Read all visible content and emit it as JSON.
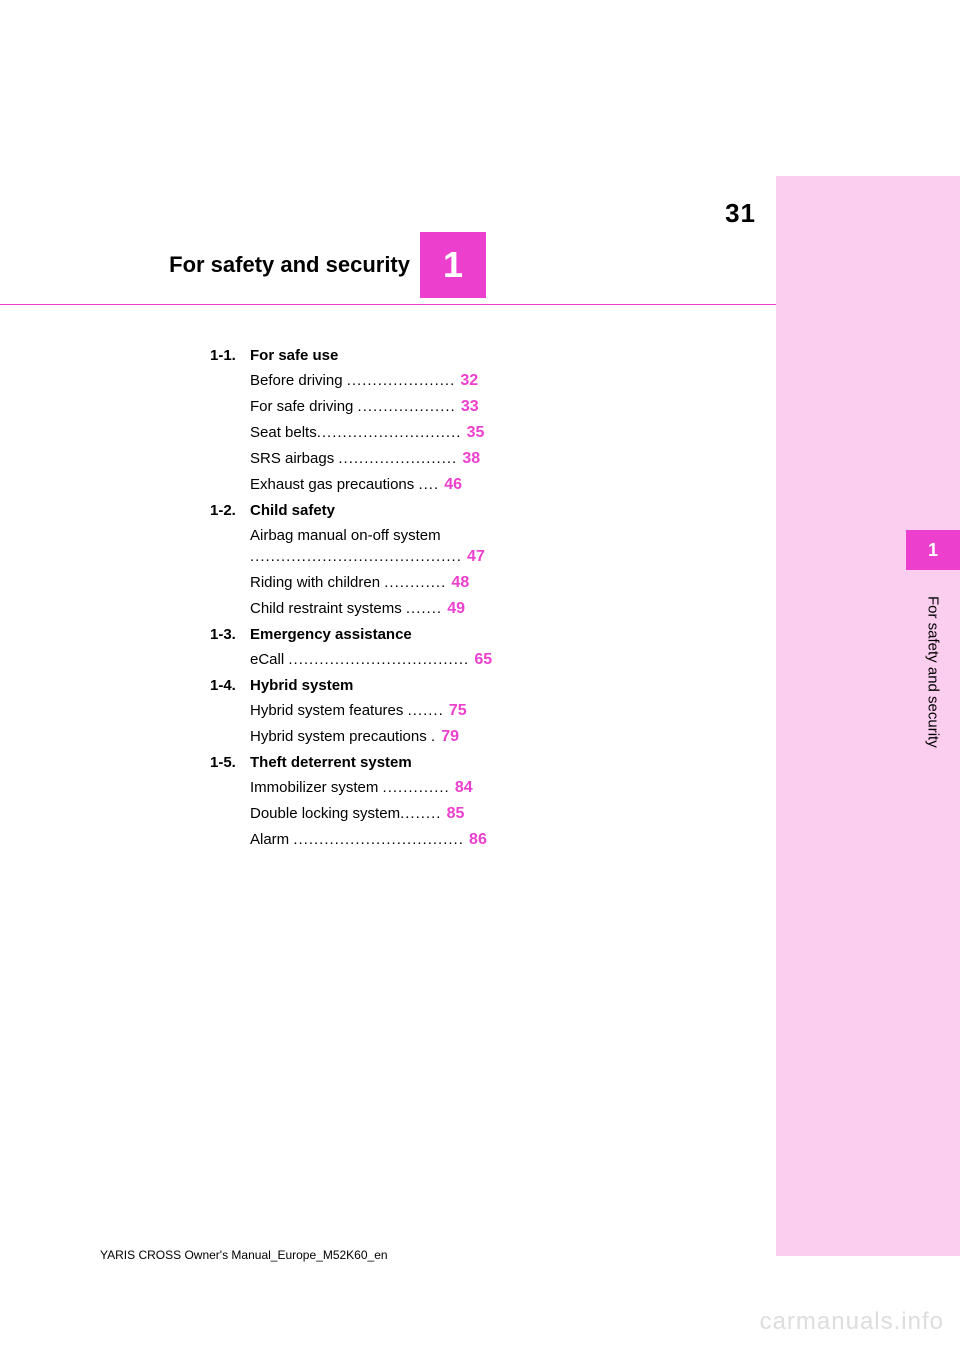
{
  "page": {
    "number": "31",
    "footer": "YARIS CROSS Owner's Manual_Europe_M52K60_en",
    "watermark": "carmanuals.info"
  },
  "chapter": {
    "number": "1",
    "title": "For safety and security"
  },
  "sideTab": {
    "number": "1",
    "label": "For safety and security"
  },
  "colors": {
    "accent": "#ec3fcd",
    "panel": "#fbceef",
    "text": "#000000",
    "watermark": "#dddddd"
  },
  "toc": [
    {
      "num": "1-1.",
      "title": "For safe use",
      "items": [
        {
          "label": "Before driving ",
          "leader": ".....................",
          "page": "32"
        },
        {
          "label": "For safe driving ",
          "leader": "...................",
          "page": "33"
        },
        {
          "label": "Seat belts",
          "leader": "............................",
          "page": "35"
        },
        {
          "label": "SRS airbags ",
          "leader": ".......................",
          "page": "38"
        },
        {
          "label": "Exhaust gas precautions ",
          "leader": "....",
          "page": "46"
        }
      ]
    },
    {
      "num": "1-2.",
      "title": "Child safety",
      "items": [
        {
          "label": "Airbag manual on-off system",
          "wrap": true,
          "leader": ".........................................",
          "page": "47"
        },
        {
          "label": "Riding with children ",
          "leader": "............",
          "page": "48"
        },
        {
          "label": "Child restraint systems ",
          "leader": ".......",
          "page": "49"
        }
      ]
    },
    {
      "num": "1-3.",
      "title": "Emergency assistance",
      "items": [
        {
          "label": "eCall ",
          "leader": "...................................",
          "page": "65"
        }
      ]
    },
    {
      "num": "1-4.",
      "title": "Hybrid system",
      "items": [
        {
          "label": "Hybrid system features ",
          "leader": ".......",
          "page": "75"
        },
        {
          "label": "Hybrid system precautions ",
          "leader": ".",
          "page": "79"
        }
      ]
    },
    {
      "num": "1-5.",
      "title": "Theft deterrent system",
      "items": [
        {
          "label": "Immobilizer system ",
          "leader": ".............",
          "page": "84"
        },
        {
          "label": "Double locking system",
          "leader": "........",
          "page": "85"
        },
        {
          "label": "Alarm ",
          "leader": ".................................",
          "page": "86"
        }
      ]
    }
  ]
}
